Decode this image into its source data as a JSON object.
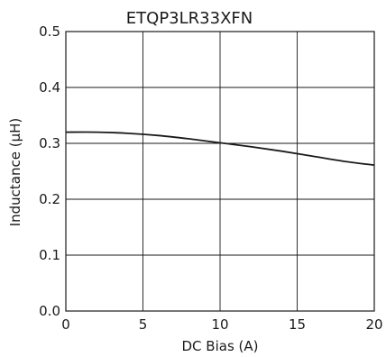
{
  "chart_data": {
    "type": "line",
    "title": "ETQP3LR33XFN",
    "xlabel": "DC Bias (A)",
    "ylabel": "Inductance (µH)",
    "xlim": [
      0,
      20
    ],
    "ylim": [
      0.0,
      0.5
    ],
    "xticks": [
      "0",
      "5",
      "10",
      "15",
      "20"
    ],
    "yticks": [
      "0.0",
      "0.1",
      "0.2",
      "0.3",
      "0.4",
      "0.5"
    ],
    "grid": true,
    "series": [
      {
        "x": [
          0,
          2,
          4,
          6,
          8,
          10,
          12,
          14,
          16,
          18,
          20
        ],
        "values": [
          0.32,
          0.32,
          0.318,
          0.314,
          0.308,
          0.301,
          0.294,
          0.286,
          0.277,
          0.268,
          0.261
        ]
      }
    ]
  },
  "colors": {
    "line": "#1a1a1a",
    "grid": "#1a1a1a",
    "background": "#ffffff"
  }
}
